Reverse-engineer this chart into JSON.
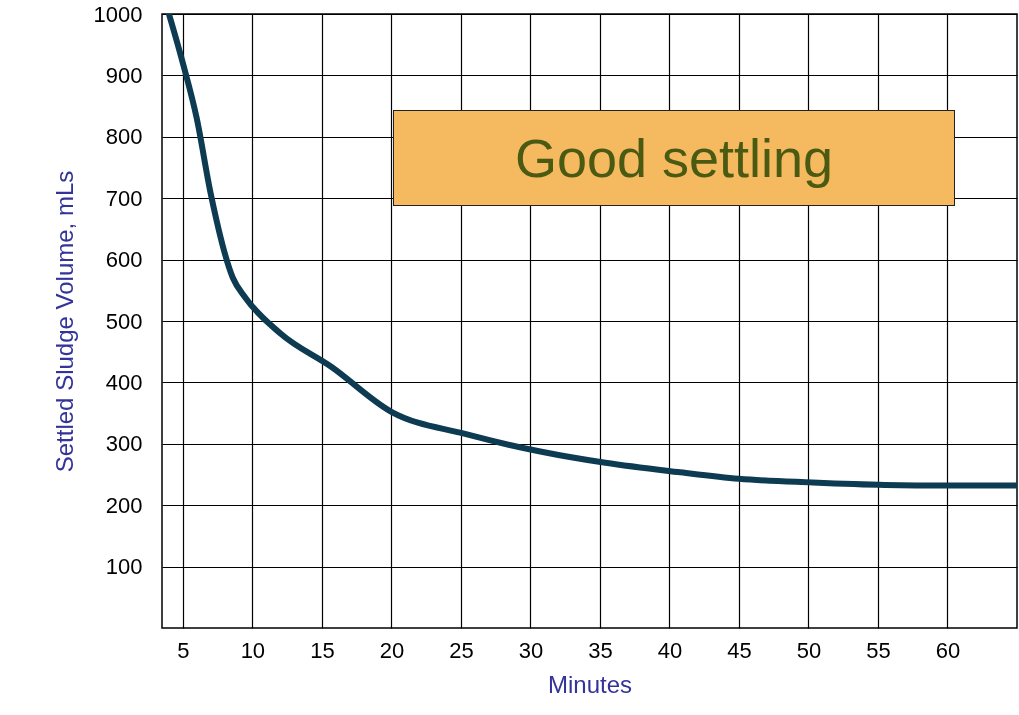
{
  "chart_data": {
    "type": "line",
    "xlabel": "Minutes",
    "ylabel": "Settled Sludge Volume, mLs",
    "x": [
      4,
      5,
      6,
      7,
      8.6,
      9.5,
      12,
      15.7,
      20,
      25.3,
      30.8,
      35.4,
      40.6,
      45,
      50.3,
      55.5,
      60,
      65
    ],
    "values": [
      1000,
      920,
      830,
      708,
      570,
      538,
      480,
      425,
      352,
      316,
      287,
      269,
      254,
      243,
      237,
      233,
      232,
      232
    ],
    "color": "#0d3b52",
    "xlim": [
      3.5,
      65
    ],
    "ylim": [
      0,
      1000
    ],
    "xticks": [
      5,
      10,
      15,
      20,
      25,
      30,
      35,
      40,
      45,
      50,
      55,
      60
    ],
    "yticks": [
      100,
      200,
      300,
      400,
      500,
      600,
      700,
      800,
      900,
      1000
    ],
    "grid": true,
    "annotations": [
      "Good settling"
    ]
  }
}
